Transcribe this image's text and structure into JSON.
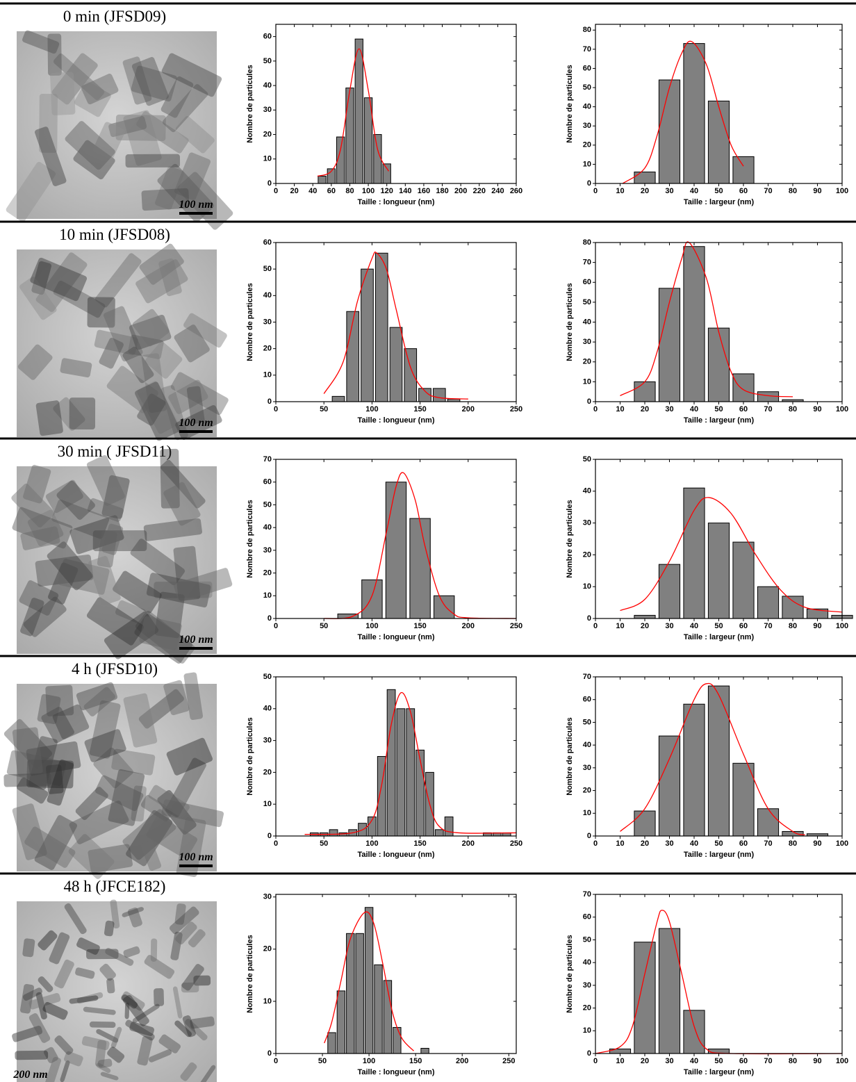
{
  "rows": [
    {
      "label": "0 min (JFSD09)",
      "scale_bar": "100 nm"
    },
    {
      "label": "10 min (JFSD08)",
      "scale_bar": "100 nm"
    },
    {
      "label": "30 min ( JFSD11)",
      "scale_bar": "100 nm"
    },
    {
      "label": "4 h (JFSD10)",
      "scale_bar": "100 nm"
    },
    {
      "label": "48 h (JFCE182)",
      "scale_bar": "200 nm"
    }
  ],
  "chart_data": [
    {
      "type": "bar",
      "x_label": "Taille : longueur (nm)",
      "y_label": "Nombre de particules",
      "color": "#808080",
      "x": [
        50,
        60,
        70,
        80,
        90,
        100,
        110,
        120
      ],
      "values": [
        3,
        6,
        19,
        39,
        59,
        35,
        20,
        8
      ],
      "fit": {
        "color": "#ff0000",
        "x": [
          45,
          60,
          70,
          80,
          90,
          100,
          110,
          122
        ],
        "values": [
          3,
          5,
          14,
          38,
          55,
          38,
          14,
          5
        ]
      },
      "xlim": [
        0,
        260
      ],
      "xticks": [
        0,
        20,
        40,
        60,
        80,
        100,
        120,
        140,
        160,
        180,
        200,
        220,
        240,
        260
      ],
      "ylim": [
        0,
        65
      ],
      "yticks": [
        0,
        10,
        20,
        30,
        40,
        50,
        60
      ]
    },
    {
      "type": "bar",
      "x_label": "Taille : largeur (nm)",
      "y_label": "Nombre de particules",
      "color": "#808080",
      "x": [
        20,
        30,
        40,
        50,
        60
      ],
      "values": [
        6,
        54,
        73,
        43,
        14
      ],
      "fit": {
        "color": "#ff0000",
        "x": [
          11,
          20,
          25,
          30,
          35,
          39,
          45,
          50,
          55,
          60
        ],
        "values": [
          0,
          8,
          25,
          50,
          68,
          74,
          62,
          40,
          20,
          9
        ]
      },
      "xlim": [
        0,
        100
      ],
      "xticks": [
        0,
        10,
        20,
        30,
        40,
        50,
        60,
        70,
        80,
        90,
        100
      ],
      "ylim": [
        0,
        83
      ],
      "yticks": [
        0,
        10,
        20,
        30,
        40,
        50,
        60,
        70,
        80
      ]
    },
    {
      "type": "bar",
      "x_label": "Taille : longueur (nm)",
      "y_label": "Nombre de particules",
      "color": "#808080",
      "x": [
        65,
        80,
        95,
        110,
        125,
        140,
        155,
        170,
        185
      ],
      "values": [
        2,
        34,
        50,
        56,
        28,
        20,
        5,
        5,
        1
      ],
      "fit": {
        "color": "#ff0000",
        "x": [
          50,
          70,
          85,
          100,
          105,
          115,
          125,
          140,
          155,
          170,
          200
        ],
        "values": [
          3,
          15,
          38,
          54,
          56,
          50,
          35,
          13,
          4,
          1.5,
          1
        ]
      },
      "xlim": [
        0,
        250
      ],
      "xticks": [
        0,
        50,
        100,
        150,
        200,
        250
      ],
      "ylim": [
        0,
        60
      ],
      "yticks": [
        0,
        10,
        20,
        30,
        40,
        50,
        60
      ]
    },
    {
      "type": "bar",
      "x_label": "Taille : largeur (nm)",
      "y_label": "Nombre de particules",
      "color": "#808080",
      "x": [
        20,
        30,
        40,
        50,
        60,
        70,
        80
      ],
      "values": [
        10,
        57,
        78,
        37,
        14,
        5,
        1
      ],
      "fit": {
        "color": "#ff0000",
        "x": [
          10,
          20,
          25,
          30,
          35,
          38,
          45,
          50,
          55,
          60,
          70,
          80
        ],
        "values": [
          3,
          10,
          25,
          50,
          72,
          80,
          62,
          35,
          15,
          6,
          3,
          2.5
        ]
      },
      "xlim": [
        0,
        100
      ],
      "xticks": [
        0,
        10,
        20,
        30,
        40,
        50,
        60,
        70,
        80,
        90,
        100
      ],
      "ylim": [
        0,
        80
      ],
      "yticks": [
        0,
        10,
        20,
        30,
        40,
        50,
        60,
        70,
        80
      ]
    },
    {
      "type": "bar",
      "x_label": "Taille : longueur (nm)",
      "y_label": "Nombre de particules",
      "color": "#808080",
      "x": [
        75,
        100,
        125,
        150,
        175
      ],
      "values": [
        2,
        17,
        60,
        44,
        10
      ],
      "fit": {
        "color": "#ff0000",
        "x": [
          50,
          80,
          100,
          115,
          125,
          133,
          145,
          155,
          170,
          185,
          200,
          250
        ],
        "values": [
          0,
          1,
          10,
          38,
          58,
          64,
          52,
          32,
          10,
          2,
          0.3,
          0
        ]
      },
      "xlim": [
        0,
        250
      ],
      "xticks": [
        0,
        50,
        100,
        150,
        200,
        250
      ],
      "ylim": [
        0,
        70
      ],
      "yticks": [
        0,
        10,
        20,
        30,
        40,
        50,
        60,
        70
      ]
    },
    {
      "type": "bar",
      "x_label": "Taille : largeur (nm)",
      "y_label": "Nombre de particules",
      "color": "#808080",
      "x": [
        20,
        30,
        40,
        50,
        60,
        70,
        80,
        90,
        100
      ],
      "values": [
        1,
        17,
        41,
        30,
        24,
        10,
        7,
        3,
        1
      ],
      "fit": {
        "color": "#ff0000",
        "x": [
          10,
          20,
          30,
          40,
          46,
          55,
          65,
          75,
          85,
          100
        ],
        "values": [
          2.5,
          6,
          18,
          34,
          38,
          33,
          20,
          9,
          3.5,
          2
        ]
      },
      "xlim": [
        0,
        100
      ],
      "xticks": [
        0,
        10,
        20,
        30,
        40,
        50,
        60,
        70,
        80,
        90,
        100
      ],
      "ylim": [
        0,
        50
      ],
      "yticks": [
        0,
        10,
        20,
        30,
        40,
        50
      ]
    },
    {
      "type": "bar",
      "x_label": "Taille : longueur (nm)",
      "y_label": "Nombre de particules",
      "color": "#808080",
      "x": [
        40,
        50,
        60,
        70,
        80,
        90,
        100,
        110,
        120,
        130,
        140,
        150,
        160,
        170,
        180,
        220,
        230,
        240
      ],
      "values": [
        1,
        1,
        2,
        1,
        2,
        4,
        6,
        25,
        46,
        40,
        40,
        27,
        20,
        2,
        6,
        1,
        1,
        1
      ],
      "fit": {
        "color": "#ff0000",
        "x": [
          30,
          80,
          100,
          110,
          120,
          130,
          140,
          150,
          160,
          170,
          190,
          250
        ],
        "values": [
          0.5,
          1,
          5,
          16,
          35,
          45,
          39,
          24,
          10,
          3,
          1,
          1
        ]
      },
      "xlim": [
        0,
        250
      ],
      "xticks": [
        0,
        50,
        100,
        150,
        200,
        250
      ],
      "ylim": [
        0,
        50
      ],
      "yticks": [
        0,
        10,
        20,
        30,
        40,
        50
      ]
    },
    {
      "type": "bar",
      "x_label": "Taille : largeur (nm)",
      "y_label": "Nombre de particules",
      "color": "#808080",
      "x": [
        20,
        30,
        40,
        50,
        60,
        70,
        80,
        90
      ],
      "values": [
        11,
        44,
        58,
        66,
        32,
        12,
        2,
        1
      ],
      "fit": {
        "color": "#ff0000",
        "x": [
          10,
          20,
          30,
          40,
          45,
          50,
          60,
          70,
          80,
          85
        ],
        "values": [
          2,
          12,
          34,
          60,
          67,
          62,
          36,
          12,
          2,
          0.5
        ]
      },
      "xlim": [
        0,
        100
      ],
      "xticks": [
        0,
        10,
        20,
        30,
        40,
        50,
        60,
        70,
        80,
        90,
        100
      ],
      "ylim": [
        0,
        70
      ],
      "yticks": [
        0,
        10,
        20,
        30,
        40,
        50,
        60,
        70
      ]
    },
    {
      "type": "bar",
      "x_label": "Taille : longueur (nm)",
      "y_label": "Nombre de particules",
      "color": "#808080",
      "x": [
        60,
        70,
        80,
        90,
        100,
        110,
        120,
        130,
        160
      ],
      "values": [
        4,
        12,
        23,
        23,
        28,
        17,
        14,
        5,
        1
      ],
      "fit": {
        "color": "#ff0000",
        "x": [
          52,
          60,
          70,
          80,
          95,
          105,
          115,
          125,
          135,
          148
        ],
        "values": [
          2,
          6,
          14,
          22,
          27,
          25,
          17,
          8,
          3,
          0.5
        ]
      },
      "xlim": [
        0,
        258
      ],
      "xticks": [
        0,
        50,
        100,
        150,
        200,
        250
      ],
      "ylim": [
        0,
        30.5
      ],
      "yticks": [
        0,
        10,
        20,
        30
      ]
    },
    {
      "type": "bar",
      "x_label": "Taille : largeur (nm)",
      "y_label": "Nombre de particules",
      "color": "#808080",
      "x": [
        10,
        20,
        30,
        40,
        50
      ],
      "values": [
        2,
        49,
        55,
        19,
        2
      ],
      "fit": {
        "color": "#ff0000",
        "x": [
          0,
          10,
          15,
          20,
          25,
          27,
          30,
          35,
          40,
          45,
          55,
          100
        ],
        "values": [
          0,
          3,
          12,
          35,
          58,
          63,
          58,
          35,
          12,
          2,
          0,
          0
        ]
      },
      "xlim": [
        0,
        100
      ],
      "xticks": [
        0,
        10,
        20,
        30,
        40,
        50,
        60,
        70,
        80,
        90,
        100
      ],
      "ylim": [
        0,
        70
      ],
      "yticks": [
        0,
        10,
        20,
        30,
        40,
        50,
        60,
        70
      ]
    }
  ]
}
